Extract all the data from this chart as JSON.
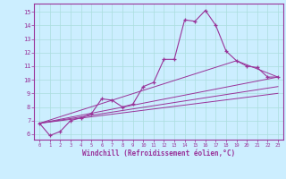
{
  "xlabel": "Windchill (Refroidissement éolien,°C)",
  "bg_color": "#cceeff",
  "line_color": "#993399",
  "grid_color": "#aadddd",
  "xlim": [
    -0.5,
    23.5
  ],
  "ylim": [
    5.6,
    15.6
  ],
  "xticks": [
    0,
    1,
    2,
    3,
    4,
    5,
    6,
    7,
    8,
    9,
    10,
    11,
    12,
    13,
    14,
    15,
    16,
    17,
    18,
    19,
    20,
    21,
    22,
    23
  ],
  "yticks": [
    6,
    7,
    8,
    9,
    10,
    11,
    12,
    13,
    14,
    15
  ],
  "main_x": [
    0,
    1,
    2,
    3,
    4,
    5,
    6,
    7,
    8,
    9,
    10,
    11,
    12,
    13,
    14,
    15,
    16,
    17,
    18,
    19,
    20,
    21,
    22,
    23
  ],
  "main_y": [
    6.8,
    5.9,
    6.2,
    7.0,
    7.2,
    7.5,
    8.6,
    8.5,
    8.0,
    8.2,
    9.5,
    9.8,
    11.5,
    11.5,
    14.4,
    14.3,
    15.1,
    14.0,
    12.1,
    11.4,
    11.0,
    10.9,
    10.2,
    10.2
  ],
  "trend1_x": [
    0,
    23
  ],
  "trend1_y": [
    6.8,
    10.2
  ],
  "trend2_x": [
    0,
    23
  ],
  "trend2_y": [
    6.8,
    9.5
  ],
  "trend3_x": [
    0,
    23
  ],
  "trend3_y": [
    6.8,
    9.0
  ],
  "trend4_x": [
    0,
    19,
    23
  ],
  "trend4_y": [
    6.8,
    11.4,
    10.2
  ]
}
